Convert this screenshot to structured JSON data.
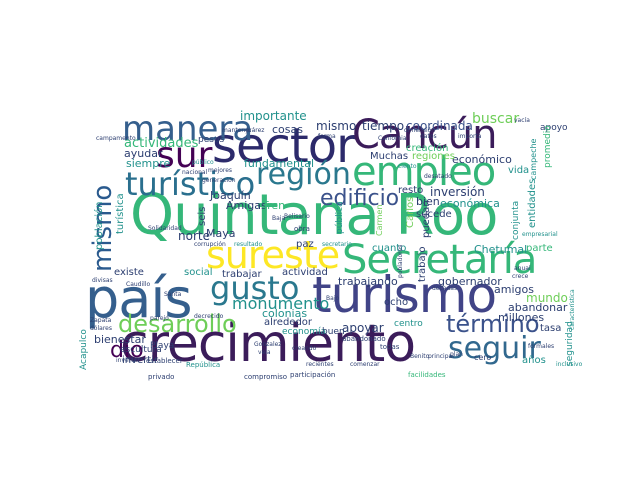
{
  "colors": {
    "dark_purple": "#440154",
    "indigo": "#3b528b",
    "slate": "#355f8d",
    "teal": "#21918c",
    "green": "#35b779",
    "lime": "#6ece58",
    "yellow": "#fde725",
    "background": "#ffffff"
  },
  "words": [
    {
      "text": "Quintana Roo",
      "color": "#35b779"
    },
    {
      "text": "crecimiento",
      "color": "#3b1c5a"
    },
    {
      "text": "turismo",
      "color": "#414487"
    },
    {
      "text": "país",
      "color": "#355f8d"
    },
    {
      "text": "sector",
      "color": "#2c2a6b"
    },
    {
      "text": "Secretaría",
      "color": "#35b779"
    },
    {
      "text": "sureste",
      "color": "#fde725"
    },
    {
      "text": "empleo",
      "color": "#35b779"
    },
    {
      "text": "Cancún",
      "color": "#3b1c5a"
    },
    {
      "text": "región",
      "color": "#2a788e"
    },
    {
      "text": "gusto",
      "color": "#2a788e"
    },
    {
      "text": "turístico",
      "color": "#2a6f8e"
    },
    {
      "text": "manera",
      "color": "#355f8d"
    },
    {
      "text": "sur",
      "color": "#440154"
    },
    {
      "text": "desarrollo",
      "color": "#6ece58"
    },
    {
      "text": "edificio",
      "color": "#3b528b"
    },
    {
      "text": "seguir",
      "color": "#31688e"
    },
    {
      "text": "término",
      "color": "#3b528b"
    },
    {
      "text": "mismo",
      "color": "#2a5a8e"
    },
    {
      "text": "dio",
      "color": "#440154"
    },
    {
      "text": "monumento",
      "color": "#21918c"
    },
    {
      "text": "tiempo",
      "color": "#2c3e70"
    },
    {
      "text": "mismo",
      "color": "#2c3e70"
    },
    {
      "text": "coordinada",
      "color": "#3b528b"
    },
    {
      "text": "buscar",
      "color": "#6ece58"
    },
    {
      "text": "actividades",
      "color": "#35b779"
    },
    {
      "text": "importante",
      "color": "#21918c"
    },
    {
      "text": "cosas",
      "color": "#2c3e70"
    },
    {
      "text": "ayudar",
      "color": "#2c3e70"
    },
    {
      "text": "siempre",
      "color": "#21918c"
    },
    {
      "text": "norte",
      "color": "#2c3e70"
    },
    {
      "text": "Maya",
      "color": "#2c3e70"
    },
    {
      "text": "fundamental",
      "color": "#21918c"
    },
    {
      "text": "Joaquín",
      "color": "#2c3e70"
    },
    {
      "text": "Amigas",
      "color": "#2c3e70"
    },
    {
      "text": "Tren",
      "color": "#35b779"
    },
    {
      "text": "inversión",
      "color": "#2c3e70"
    },
    {
      "text": "resto",
      "color": "#2c3e70"
    },
    {
      "text": "bien",
      "color": "#2c3e70"
    },
    {
      "text": "económica",
      "color": "#21918c"
    },
    {
      "text": "económico",
      "color": "#2c3e70"
    },
    {
      "text": "vida",
      "color": "#21918c"
    },
    {
      "text": "entidades",
      "color": "#21918c"
    },
    {
      "text": "creación",
      "color": "#35b779"
    },
    {
      "text": "regiones",
      "color": "#6ece58"
    },
    {
      "text": "Muchas",
      "color": "#2c3e70"
    },
    {
      "text": "apoyo",
      "color": "#2c3e70"
    },
    {
      "text": "promedio",
      "color": "#35b779"
    },
    {
      "text": "campeche",
      "color": "#21918c"
    },
    {
      "text": "sucede",
      "color": "#2c3e70"
    },
    {
      "text": "trabajando",
      "color": "#2c3e70"
    },
    {
      "text": "gobernador",
      "color": "#2c3e70"
    },
    {
      "text": "amigos",
      "color": "#2c3e70"
    },
    {
      "text": "Chetumal",
      "color": "#21918c"
    },
    {
      "text": "parte",
      "color": "#35b779"
    },
    {
      "text": "cuanto",
      "color": "#21918c"
    },
    {
      "text": "conjunta",
      "color": "#21918c"
    },
    {
      "text": "población",
      "color": "#21918c"
    },
    {
      "text": "turística",
      "color": "#21918c"
    },
    {
      "text": "existe",
      "color": "#2c3e70"
    },
    {
      "text": "social",
      "color": "#21918c"
    },
    {
      "text": "trabajar",
      "color": "#2c3e70"
    },
    {
      "text": "actividad",
      "color": "#2c3e70"
    },
    {
      "text": "paz",
      "color": "#2c3e70"
    },
    {
      "text": "seis",
      "color": "#2c3e70"
    },
    {
      "text": "pesos",
      "color": "#2c3e70"
    },
    {
      "text": "colonias",
      "color": "#21918c"
    },
    {
      "text": "apoyar",
      "color": "#2c3e70"
    },
    {
      "text": "ocho",
      "color": "#2c3e70"
    },
    {
      "text": "centro",
      "color": "#21918c"
    },
    {
      "text": "mundo",
      "color": "#6ece58"
    },
    {
      "text": "abandonar",
      "color": "#2c3e70"
    },
    {
      "text": "millones",
      "color": "#2c3e70"
    },
    {
      "text": "tasa",
      "color": "#2c3e70"
    },
    {
      "text": "seguridad",
      "color": "#21918c"
    },
    {
      "text": "bienestar",
      "color": "#2c3e70"
    },
    {
      "text": "invertir",
      "color": "#2c3e70"
    },
    {
      "text": "Playa",
      "color": "#2c3e70"
    },
    {
      "text": "escultura",
      "color": "#2c3e70"
    },
    {
      "text": "alrededor",
      "color": "#2c3e70"
    },
    {
      "text": "economía",
      "color": "#21918c"
    },
    {
      "text": "buen",
      "color": "#2c3e70"
    },
    {
      "text": "años",
      "color": "#21918c"
    },
    {
      "text": "cero",
      "color": "#2c3e70"
    },
    {
      "text": "Carlos",
      "color": "#6ece58"
    },
    {
      "text": "puedan",
      "color": "#2c3e70"
    },
    {
      "text": "pública",
      "color": "#21918c"
    },
    {
      "text": "trabajo",
      "color": "#2c3e70"
    },
    {
      "text": "Acapulco",
      "color": "#21918c"
    },
    {
      "text": "campamento",
      "color": "#2c3e70"
    },
    {
      "text": "invertir",
      "color": "#2c3e70"
    },
    {
      "text": "mantener",
      "color": "#2c3e70"
    },
    {
      "text": "Juárez",
      "color": "#2c3e70"
    },
    {
      "text": "establecer",
      "color": "#2c3e70"
    },
    {
      "text": "corrupción",
      "color": "#2c3e70"
    },
    {
      "text": "resultado",
      "color": "#21918c"
    },
    {
      "text": "secretario",
      "color": "#21918c"
    },
    {
      "text": "obra",
      "color": "#2c3e70"
    },
    {
      "text": "Baja",
      "color": "#2c3e70"
    },
    {
      "text": "California",
      "color": "#2c3e70"
    },
    {
      "text": "público",
      "color": "#21918c"
    },
    {
      "text": "nacional",
      "color": "#2c3e70"
    },
    {
      "text": "Caudillo",
      "color": "#2c3e70"
    },
    {
      "text": "dólares",
      "color": "#2c3e70"
    },
    {
      "text": "divisas",
      "color": "#2c3e70"
    },
    {
      "text": "Zapata",
      "color": "#2c3e70"
    },
    {
      "text": "privado",
      "color": "#2c3e70"
    },
    {
      "text": "República",
      "color": "#21918c"
    },
    {
      "text": "compromiso",
      "color": "#2c3e70"
    },
    {
      "text": "participación",
      "color": "#2c3e70"
    },
    {
      "text": "abandonado",
      "color": "#2c3e70"
    },
    {
      "text": "todas",
      "color": "#2c3e70"
    },
    {
      "text": "facilidades",
      "color": "#35b779"
    },
    {
      "text": "plan",
      "color": "#2c3e70"
    },
    {
      "text": "Benito",
      "color": "#2c3e70"
    },
    {
      "text": "principal",
      "color": "#2c3e70"
    },
    {
      "text": "formales",
      "color": "#2c3e70"
    },
    {
      "text": "Santa",
      "color": "#2c3e70"
    },
    {
      "text": "Bajo",
      "color": "#2c3e70"
    },
    {
      "text": "parejo",
      "color": "#2c3e70"
    },
    {
      "text": "decrecido",
      "color": "#2c3e70"
    },
    {
      "text": "creando",
      "color": "#2c3e70"
    },
    {
      "text": "Solidaridad",
      "color": "#2c3e70"
    },
    {
      "text": "generación",
      "color": "#2c3e70"
    },
    {
      "text": "Carmen",
      "color": "#6ece58"
    },
    {
      "text": "empresarial",
      "color": "#21918c"
    },
    {
      "text": "inclusivo",
      "color": "#21918c"
    },
    {
      "text": "desatado",
      "color": "#2c3e70"
    },
    {
      "text": "datos",
      "color": "#2c3e70"
    },
    {
      "text": "crece",
      "color": "#2c3e70"
    },
    {
      "text": "anual",
      "color": "#2c3e70"
    },
    {
      "text": "décadas",
      "color": "#2c3e70"
    },
    {
      "text": "característica",
      "color": "#21918c"
    },
    {
      "text": "importa",
      "color": "#2c3e70"
    },
    {
      "text": "dimensión",
      "color": "#2c3e70"
    },
    {
      "text": "vacía",
      "color": "#2c3e70"
    },
    {
      "text": "forma",
      "color": "#2c3e70"
    },
    {
      "text": "ciento",
      "color": "#21918c"
    },
    {
      "text": "mejores",
      "color": "#2c3e70"
    },
    {
      "text": "pobladores",
      "color": "#2c3e70"
    },
    {
      "text": "recientes",
      "color": "#2c3e70"
    },
    {
      "text": "comenzar",
      "color": "#2c3e70"
    },
    {
      "text": "Belisario",
      "color": "#2c3e70"
    },
    {
      "text": "Gonzalez",
      "color": "#2c3e70"
    },
    {
      "text": "vela",
      "color": "#2c3e70"
    }
  ]
}
